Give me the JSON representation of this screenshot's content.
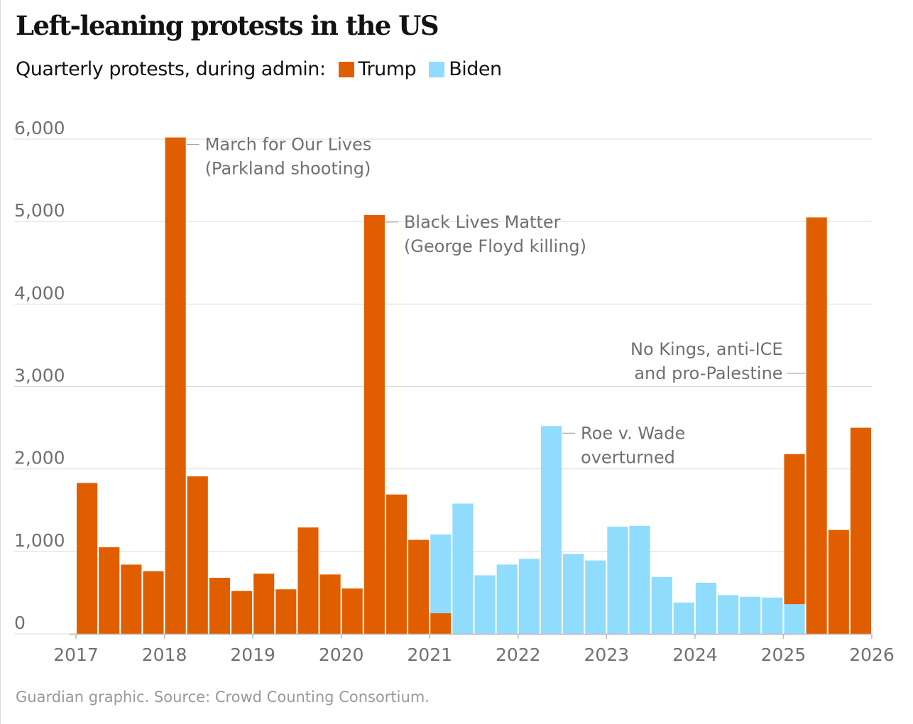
{
  "title": "Left-leaning protests in the US",
  "subtitle": "Quarterly protests, during admin:",
  "source": "Guardian graphic. Source: Crowd Counting Consortium.",
  "colors": {
    "Trump": "#e05e00",
    "Biden": "#90dcfc"
  },
  "chart_data": {
    "type": "bar",
    "stacked": true,
    "title": "Left-leaning protests in the US",
    "subtitle": "Quarterly protests, during admin:",
    "legend": [
      "Trump",
      "Biden"
    ],
    "legend_placement": "top-left",
    "ylim": [
      0,
      6000
    ],
    "yticks": [
      0,
      1000,
      2000,
      3000,
      4000,
      5000,
      6000
    ],
    "ytick_labels": [
      "0",
      "1,000",
      "2,000",
      "3,000",
      "4,000",
      "5,000",
      "6,000"
    ],
    "xticks": [
      "2017",
      "2018",
      "2019",
      "2020",
      "2021",
      "2022",
      "2023",
      "2024",
      "2025",
      "2026"
    ],
    "grid": true,
    "categories": [
      "2017 Q1",
      "2017 Q2",
      "2017 Q3",
      "2017 Q4",
      "2018 Q1",
      "2018 Q2",
      "2018 Q3",
      "2018 Q4",
      "2019 Q1",
      "2019 Q2",
      "2019 Q3",
      "2019 Q4",
      "2020 Q1",
      "2020 Q2",
      "2020 Q3",
      "2020 Q4",
      "2021 Q1",
      "2021 Q2",
      "2021 Q3",
      "2021 Q4",
      "2022 Q1",
      "2022 Q2",
      "2022 Q3",
      "2022 Q4",
      "2023 Q1",
      "2023 Q2",
      "2023 Q3",
      "2023 Q4",
      "2024 Q1",
      "2024 Q2",
      "2024 Q3",
      "2024 Q4",
      "2025 Q1",
      "2025 Q2",
      "2025 Q3",
      "2025 Q4"
    ],
    "series": [
      {
        "name": "Trump",
        "values": [
          1830,
          1050,
          840,
          760,
          6020,
          1910,
          680,
          520,
          730,
          540,
          1290,
          720,
          550,
          5080,
          1690,
          1140,
          250,
          0,
          0,
          0,
          0,
          0,
          0,
          0,
          0,
          0,
          0,
          0,
          0,
          0,
          0,
          0,
          1820,
          5050,
          1260,
          2500
        ]
      },
      {
        "name": "Biden",
        "values": [
          0,
          0,
          0,
          0,
          0,
          0,
          0,
          0,
          0,
          0,
          0,
          0,
          0,
          0,
          0,
          0,
          955,
          1580,
          710,
          840,
          910,
          2520,
          970,
          890,
          1300,
          1310,
          690,
          380,
          620,
          470,
          450,
          440,
          360,
          0,
          0,
          0
        ]
      }
    ],
    "annotations": [
      {
        "category": "2018 Q1",
        "lines": [
          "March for Our Lives",
          "(Parkland shooting)"
        ],
        "side": "right"
      },
      {
        "category": "2020 Q2",
        "lines": [
          "Black Lives Matter",
          "(George Floyd killing)"
        ],
        "side": "right"
      },
      {
        "category": "2022 Q2",
        "lines": [
          "Roe v. Wade",
          "overturned"
        ],
        "side": "right"
      },
      {
        "category": "2025 Q2",
        "lines": [
          "No Kings, anti-ICE",
          "and pro-Palestine"
        ],
        "side": "left"
      }
    ]
  }
}
